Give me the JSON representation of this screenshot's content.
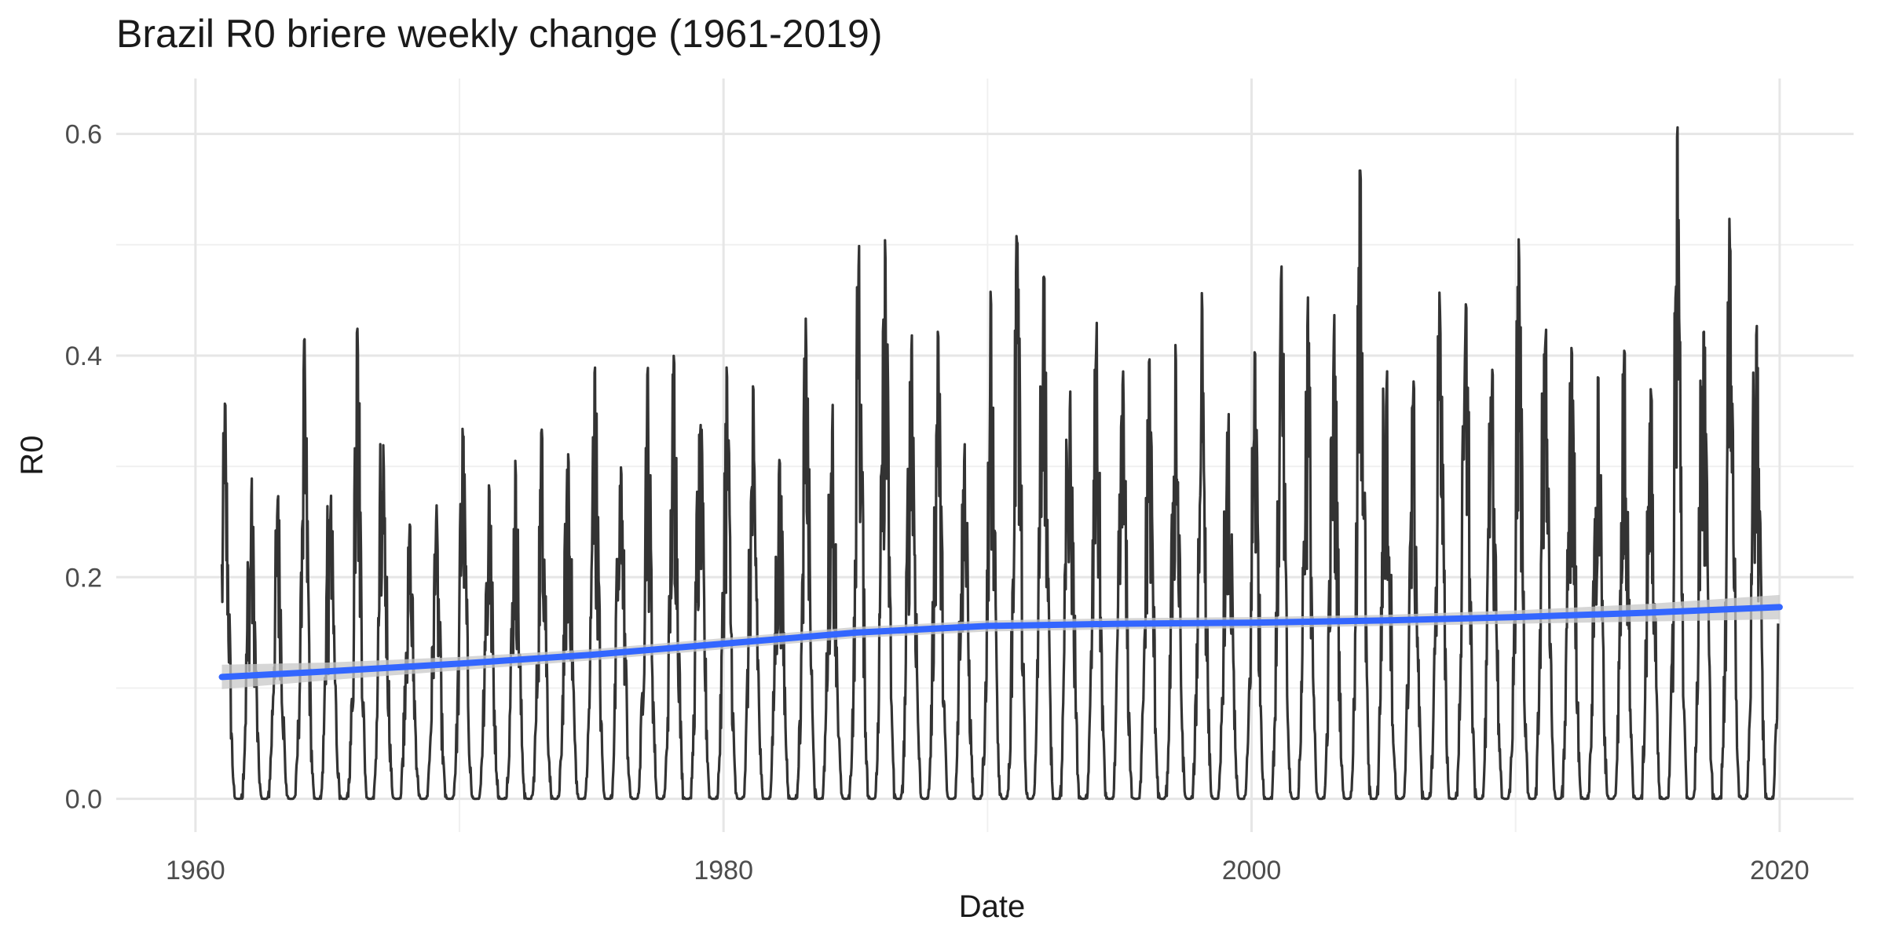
{
  "chart_data": {
    "type": "line",
    "title": "Brazil R0 briere weekly change (1961-2019)",
    "xlabel": "Date",
    "ylabel": "R0",
    "xlim": [
      1957.0,
      2022.8
    ],
    "ylim": [
      -0.03,
      0.65
    ],
    "x_ticks": [
      1960,
      1980,
      2000,
      2020
    ],
    "x_tick_labels": [
      "1960",
      "1980",
      "2000",
      "2020"
    ],
    "y_ticks": [
      0.0,
      0.2,
      0.4,
      0.6
    ],
    "y_tick_labels": [
      "0.0",
      "0.2",
      "0.4",
      "0.6"
    ],
    "grid": true,
    "legend": "none",
    "colors": {
      "series": "#333333",
      "trend": "#3366ff",
      "band": "#c8c8c8"
    },
    "x_start": 1961.0,
    "x_end": 2019.95,
    "annual_peaks": [
      {
        "year": 1961,
        "value": 0.36
      },
      {
        "year": 1962,
        "value": 0.29
      },
      {
        "year": 1963,
        "value": 0.285
      },
      {
        "year": 1964,
        "value": 0.415
      },
      {
        "year": 1965,
        "value": 0.275
      },
      {
        "year": 1966,
        "value": 0.45
      },
      {
        "year": 1967,
        "value": 0.32
      },
      {
        "year": 1968,
        "value": 0.25
      },
      {
        "year": 1969,
        "value": 0.265
      },
      {
        "year": 1970,
        "value": 0.35
      },
      {
        "year": 1971,
        "value": 0.295
      },
      {
        "year": 1972,
        "value": 0.31
      },
      {
        "year": 1973,
        "value": 0.35
      },
      {
        "year": 1974,
        "value": 0.32
      },
      {
        "year": 1975,
        "value": 0.405
      },
      {
        "year": 1976,
        "value": 0.315
      },
      {
        "year": 1977,
        "value": 0.395
      },
      {
        "year": 1978,
        "value": 0.42
      },
      {
        "year": 1979,
        "value": 0.355
      },
      {
        "year": 1980,
        "value": 0.4
      },
      {
        "year": 1981,
        "value": 0.375
      },
      {
        "year": 1982,
        "value": 0.32
      },
      {
        "year": 1983,
        "value": 0.435
      },
      {
        "year": 1984,
        "value": 0.36
      },
      {
        "year": 1985,
        "value": 0.52
      },
      {
        "year": 1986,
        "value": 0.51
      },
      {
        "year": 1987,
        "value": 0.44
      },
      {
        "year": 1988,
        "value": 0.435
      },
      {
        "year": 1989,
        "value": 0.33
      },
      {
        "year": 1990,
        "value": 0.46
      },
      {
        "year": 1991,
        "value": 0.54
      },
      {
        "year": 1992,
        "value": 0.51
      },
      {
        "year": 1993,
        "value": 0.38
      },
      {
        "year": 1994,
        "value": 0.43
      },
      {
        "year": 1995,
        "value": 0.39
      },
      {
        "year": 1996,
        "value": 0.415
      },
      {
        "year": 1997,
        "value": 0.42
      },
      {
        "year": 1998,
        "value": 0.465
      },
      {
        "year": 1999,
        "value": 0.35
      },
      {
        "year": 2000,
        "value": 0.42
      },
      {
        "year": 2001,
        "value": 0.485
      },
      {
        "year": 2002,
        "value": 0.46
      },
      {
        "year": 2003,
        "value": 0.445
      },
      {
        "year": 2004,
        "value": 0.59
      },
      {
        "year": 2005,
        "value": 0.4
      },
      {
        "year": 2006,
        "value": 0.38
      },
      {
        "year": 2007,
        "value": 0.475
      },
      {
        "year": 2008,
        "value": 0.475
      },
      {
        "year": 2009,
        "value": 0.4
      },
      {
        "year": 2010,
        "value": 0.51
      },
      {
        "year": 2011,
        "value": 0.44
      },
      {
        "year": 2012,
        "value": 0.42
      },
      {
        "year": 2013,
        "value": 0.4
      },
      {
        "year": 2014,
        "value": 0.43
      },
      {
        "year": 2015,
        "value": 0.37
      },
      {
        "year": 2016,
        "value": 0.62
      },
      {
        "year": 2017,
        "value": 0.44
      },
      {
        "year": 2018,
        "value": 0.53
      },
      {
        "year": 2019,
        "value": 0.44
      }
    ],
    "trend": {
      "x": [
        1961,
        1965,
        1970,
        1975,
        1980,
        1985,
        1990,
        1995,
        2000,
        2005,
        2010,
        2015,
        2020
      ],
      "y": [
        0.11,
        0.115,
        0.122,
        0.13,
        0.14,
        0.15,
        0.156,
        0.158,
        0.159,
        0.161,
        0.164,
        0.168,
        0.173
      ],
      "band_halfwidth": [
        0.011,
        0.008,
        0.006,
        0.005,
        0.005,
        0.005,
        0.005,
        0.005,
        0.005,
        0.005,
        0.006,
        0.008,
        0.011
      ]
    }
  }
}
